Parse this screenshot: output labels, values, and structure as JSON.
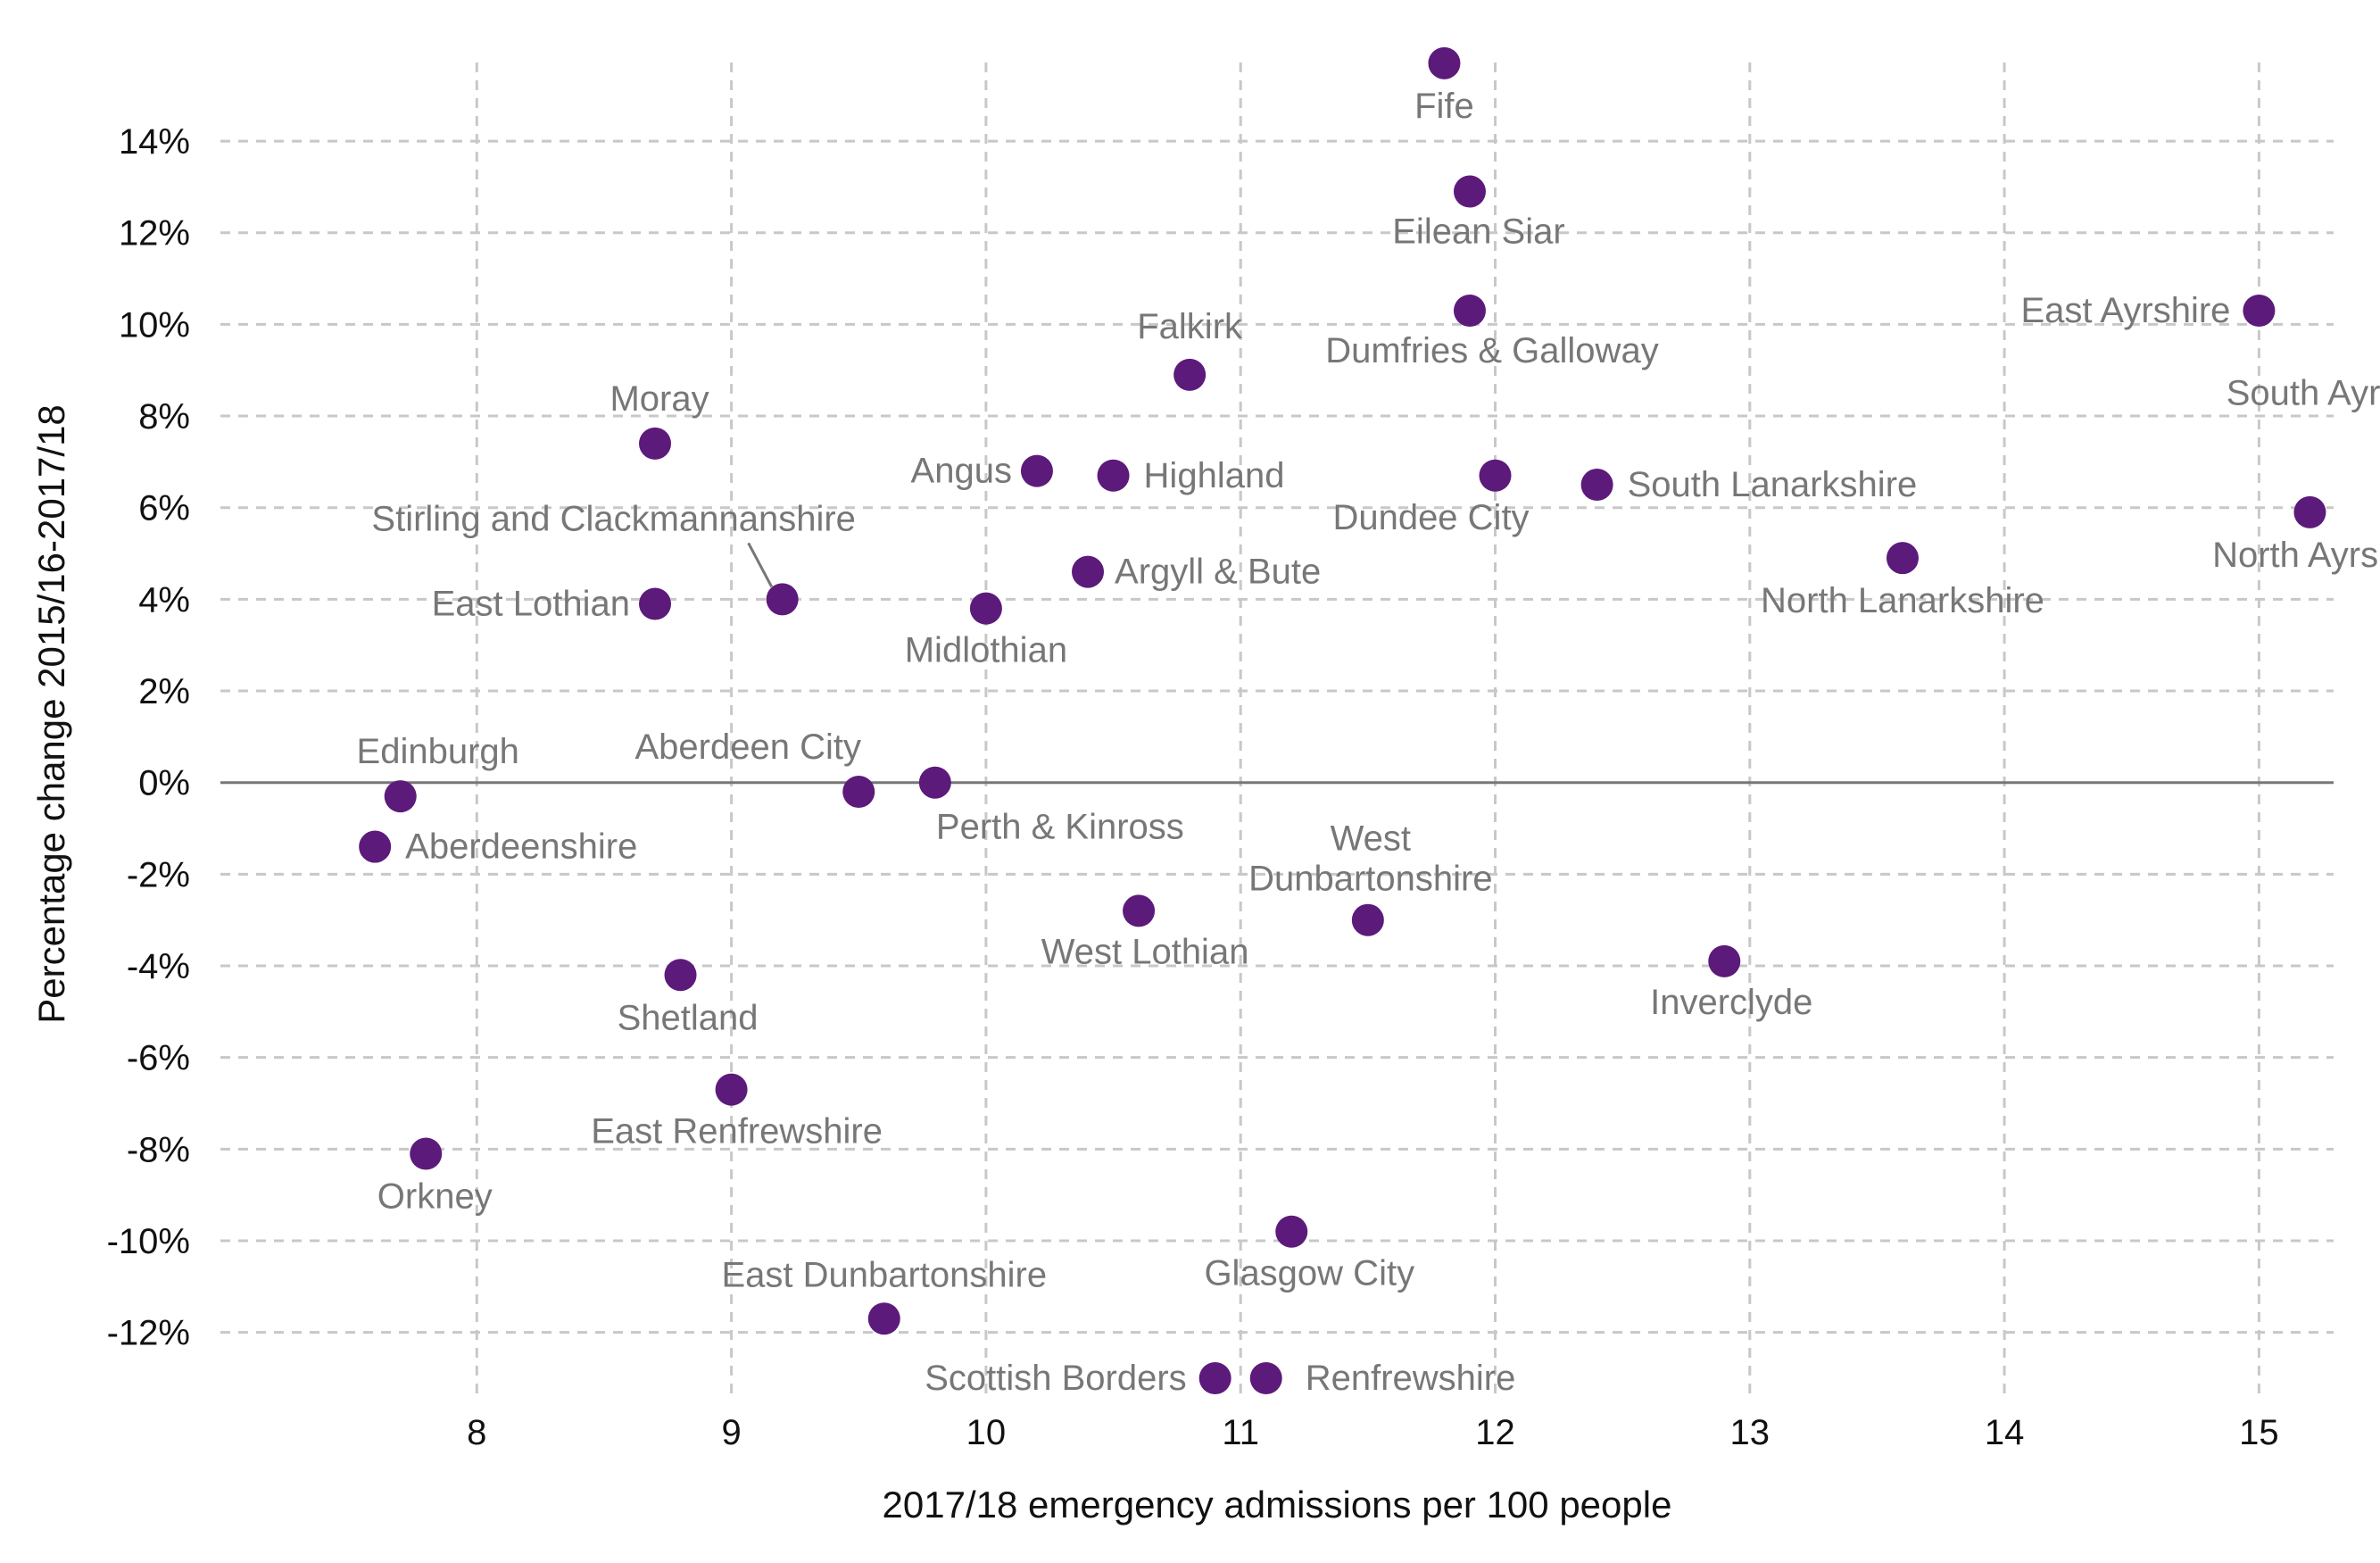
{
  "chart_data": {
    "type": "scatter",
    "xlabel": "2017/18 emergency admissions per 100 people",
    "ylabel": "Percentage change 2015/16-2017/18",
    "xlim": [
      7.6,
      15.9
    ],
    "ylim": [
      -13,
      15.7
    ],
    "x_ticks": [
      8,
      9,
      10,
      11,
      12,
      13,
      14,
      15
    ],
    "y_ticks": [
      -12,
      -10,
      -8,
      -6,
      -4,
      -2,
      0,
      2,
      4,
      6,
      8,
      10,
      12,
      14
    ],
    "x_tick_labels": [
      "8",
      "9",
      "10",
      "11",
      "12",
      "13",
      "14",
      "15"
    ],
    "y_tick_labels": [
      "-12%",
      "-10%",
      "-8%",
      "-6%",
      "-4%",
      "-2%",
      "0%",
      "2%",
      "4%",
      "6%",
      "8%",
      "10%",
      "12%",
      "14%"
    ],
    "grid": true,
    "reference_line_y": 0,
    "marker_color": "#5c1a7a",
    "label_color": "#777777",
    "points": [
      {
        "label": "Fife",
        "x": 11.8,
        "y": 15.7
      },
      {
        "label": "Eilean Siar",
        "x": 11.9,
        "y": 12.9
      },
      {
        "label": "Dumfries & Galloway",
        "x": 11.9,
        "y": 10.3
      },
      {
        "label": "East Ayrshire",
        "x": 15.0,
        "y": 10.3
      },
      {
        "label": "South Ayrshire",
        "x": 15.9,
        "y": 8.5
      },
      {
        "label": "Falkirk",
        "x": 10.8,
        "y": 8.9
      },
      {
        "label": "Moray",
        "x": 8.7,
        "y": 7.4
      },
      {
        "label": "Angus",
        "x": 10.2,
        "y": 6.8
      },
      {
        "label": "Highland",
        "x": 10.5,
        "y": 6.7
      },
      {
        "label": "Dundee City",
        "x": 12.0,
        "y": 6.7
      },
      {
        "label": "South Lanarkshire",
        "x": 12.4,
        "y": 6.5
      },
      {
        "label": "North Ayrshire",
        "x": 15.2,
        "y": 5.9
      },
      {
        "label": "North Lanarkshire",
        "x": 13.6,
        "y": 4.9
      },
      {
        "label": "Argyll & Bute",
        "x": 10.4,
        "y": 4.6
      },
      {
        "label": "Stirling and Clackmannanshire",
        "x": 9.2,
        "y": 4.0
      },
      {
        "label": "East Lothian",
        "x": 8.7,
        "y": 3.9
      },
      {
        "label": "Midlothian",
        "x": 10.0,
        "y": 3.8
      },
      {
        "label": "Perth & Kinross",
        "x": 9.8,
        "y": 0.0
      },
      {
        "label": "Aberdeen City",
        "x": 9.5,
        "y": -0.2
      },
      {
        "label": "Edinburgh",
        "x": 7.7,
        "y": -0.3
      },
      {
        "label": "Aberdeenshire",
        "x": 7.6,
        "y": -1.4
      },
      {
        "label": "West Dunbartonshire",
        "x": 11.5,
        "y": -3.0
      },
      {
        "label": "West Lothian",
        "x": 10.6,
        "y": -2.8
      },
      {
        "label": "Inverclyde",
        "x": 12.9,
        "y": -3.9
      },
      {
        "label": "Shetland",
        "x": 8.8,
        "y": -4.2
      },
      {
        "label": "East Renfrewshire",
        "x": 9.0,
        "y": -6.7
      },
      {
        "label": "Orkney",
        "x": 7.8,
        "y": -8.1
      },
      {
        "label": "Glasgow City",
        "x": 11.2,
        "y": -9.8
      },
      {
        "label": "East Dunbartonshire",
        "x": 9.6,
        "y": -11.7
      },
      {
        "label": "Scottish Borders",
        "x": 10.9,
        "y": -13.0
      },
      {
        "label": "Renfrewshire",
        "x": 11.1,
        "y": -13.0
      }
    ]
  }
}
